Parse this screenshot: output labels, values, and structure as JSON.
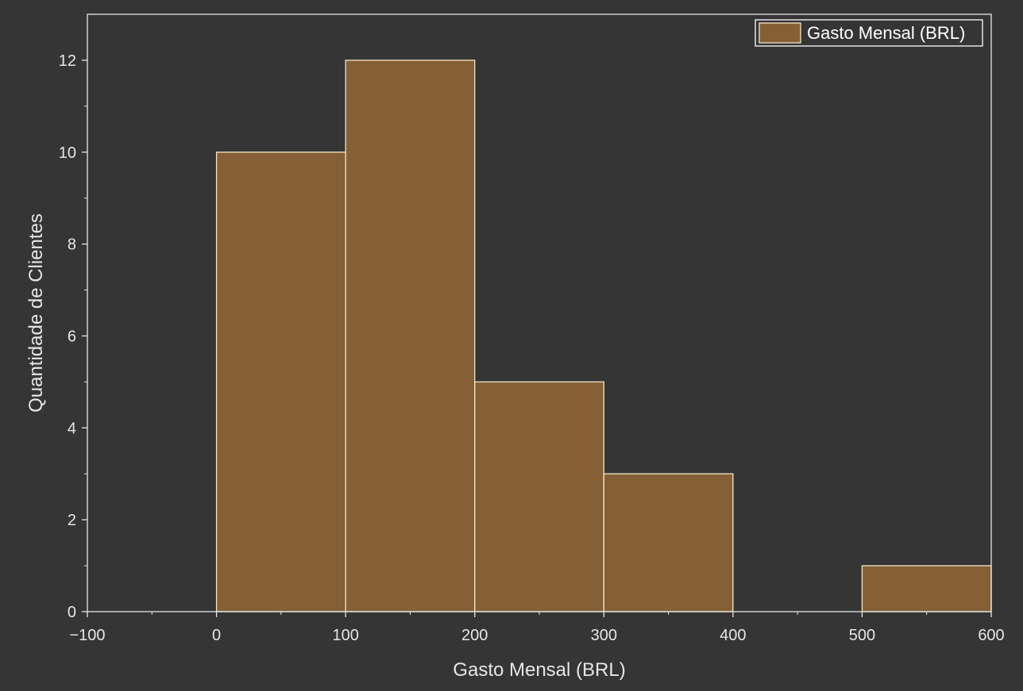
{
  "chart_data": {
    "type": "bar",
    "subtype": "histogram",
    "bins": [
      {
        "x0": 0,
        "x1": 100,
        "count": 10
      },
      {
        "x0": 100,
        "x1": 200,
        "count": 12
      },
      {
        "x0": 200,
        "x1": 300,
        "count": 5
      },
      {
        "x0": 300,
        "x1": 400,
        "count": 3
      },
      {
        "x0": 400,
        "x1": 500,
        "count": 0
      },
      {
        "x0": 500,
        "x1": 600,
        "count": 1
      }
    ],
    "xlabel": "Gasto Mensal (BRL)",
    "ylabel": "Quantidade de Clientes",
    "xlim": [
      -100,
      600
    ],
    "ylim": [
      0,
      13
    ],
    "x_ticks": [
      -100,
      0,
      100,
      200,
      300,
      400,
      500,
      600
    ],
    "x_tick_labels": [
      "−100",
      "0",
      "100",
      "200",
      "300",
      "400",
      "500",
      "600"
    ],
    "y_ticks": [
      0,
      2,
      4,
      6,
      8,
      10,
      12
    ],
    "y_tick_labels": [
      "0",
      "2",
      "4",
      "6",
      "8",
      "10",
      "12"
    ],
    "legend": {
      "entries": [
        "Gasto Mensal (BRL)"
      ],
      "placement": "top-right"
    },
    "grid": false,
    "colors": {
      "background": "#353535",
      "bar_fill": "#855f36",
      "bar_edge": "#f3e6c8",
      "axis": "#e6e6e6",
      "text": "#e6e6e6"
    }
  }
}
